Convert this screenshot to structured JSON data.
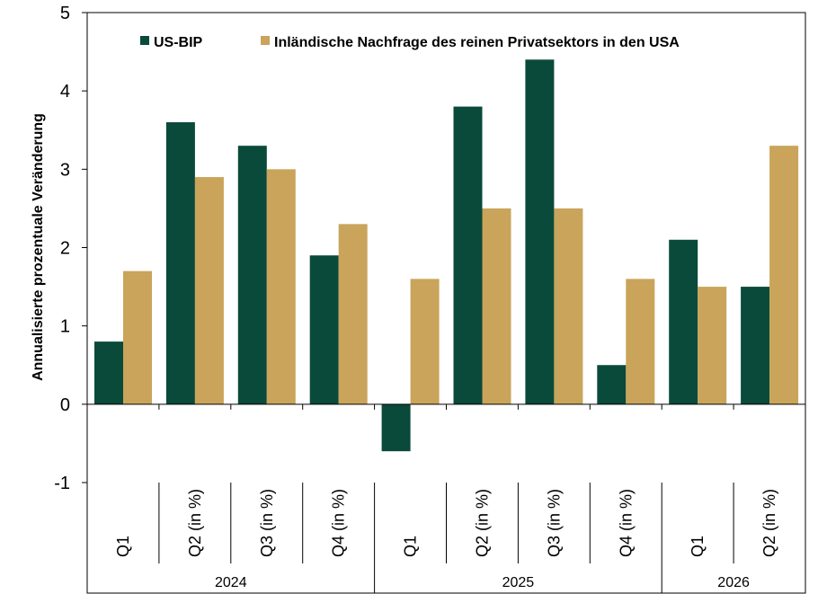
{
  "chart_data": {
    "type": "bar",
    "ylabel": "Annualisierte prozentuale Veränderung",
    "ylim": [
      -1,
      5
    ],
    "yticks": [
      -1,
      0,
      1,
      2,
      3,
      4,
      5
    ],
    "grid": false,
    "legend_position": "top",
    "categories": [
      "Q1",
      "Q2 (in %)",
      "Q3 (in %)",
      "Q4 (in %)",
      "Q1",
      "Q2 (in %)",
      "Q3 (in %)",
      "Q4 (in %)",
      "Q1",
      "Q2 (in %)"
    ],
    "year_groups": [
      {
        "label": "2024",
        "count": 4
      },
      {
        "label": "2025",
        "count": 4
      },
      {
        "label": "2026",
        "count": 2
      }
    ],
    "series": [
      {
        "name": "US-BIP",
        "color": "#0a4a3a",
        "values": [
          0.8,
          3.6,
          3.3,
          1.9,
          -0.6,
          3.8,
          4.4,
          0.5,
          2.1,
          1.5
        ]
      },
      {
        "name": "Inländische Nachfrage des reinen Privatsektors in den USA",
        "color": "#c9a45a",
        "values": [
          1.7,
          2.9,
          3.0,
          2.3,
          1.6,
          2.5,
          2.5,
          1.6,
          1.5,
          3.3
        ]
      }
    ]
  }
}
